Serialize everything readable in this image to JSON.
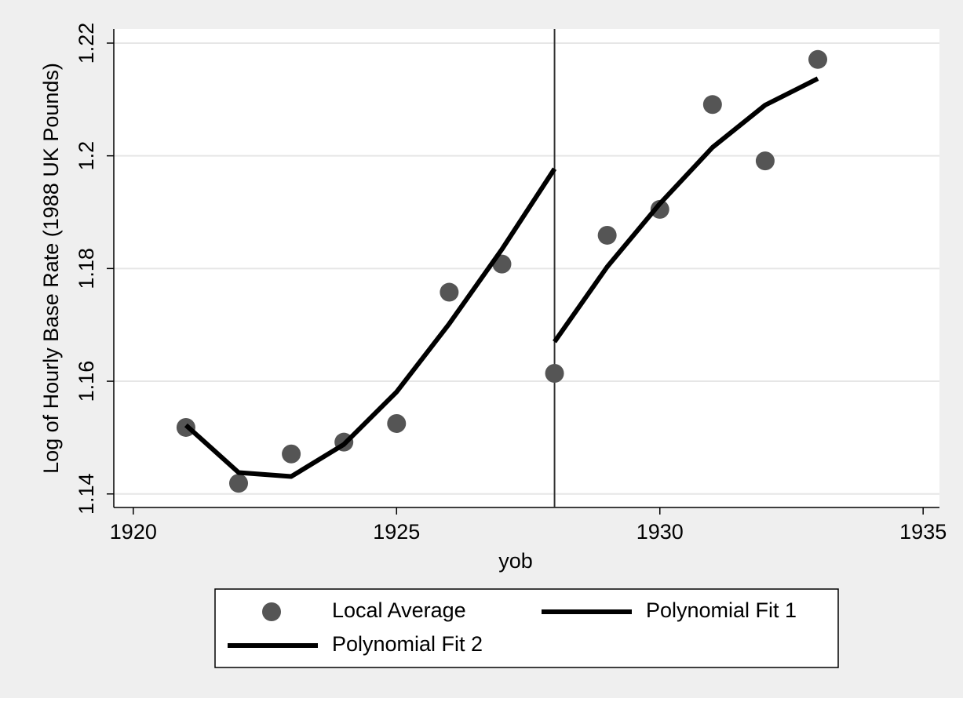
{
  "chart_data": {
    "type": "scatter",
    "x_label": "yob",
    "y_label": "Log of Hourly Base Rate (1988 UK Pounds)",
    "xlim": [
      1919.63,
      1935.31
    ],
    "ylim": [
      1.1376,
      1.2225
    ],
    "xticks": [
      1920,
      1925,
      1930,
      1935
    ],
    "yticks": [
      1.14,
      1.16,
      1.18,
      1.2,
      1.22
    ],
    "grid": true,
    "vline": 1928,
    "legend": "bottom",
    "series": [
      {
        "name": "Local Average",
        "kind": "markers",
        "color": "#555555",
        "x": [
          1921,
          1922,
          1923,
          1924,
          1925,
          1926,
          1927,
          1928,
          1929,
          1930,
          1931,
          1932,
          1933
        ],
        "values": [
          1.1518,
          1.1419,
          1.1471,
          1.1492,
          1.1525,
          1.1758,
          1.1808,
          1.1614,
          1.1859,
          1.1905,
          1.2091,
          1.1991,
          1.2171
        ]
      },
      {
        "name": "Polynomial Fit 1",
        "kind": "line",
        "color": "#000000",
        "x": [
          1921,
          1922,
          1923,
          1924,
          1925,
          1926,
          1927,
          1928
        ],
        "values": [
          1.1522,
          1.1438,
          1.1431,
          1.1488,
          1.1581,
          1.1702,
          1.1834,
          1.1977
        ]
      },
      {
        "name": "Polynomial Fit 2",
        "kind": "line",
        "color": "#000000",
        "x": [
          1928,
          1929,
          1930,
          1931,
          1932,
          1933
        ],
        "values": [
          1.167,
          1.1803,
          1.1915,
          1.2015,
          1.209,
          1.2137
        ]
      }
    ]
  }
}
